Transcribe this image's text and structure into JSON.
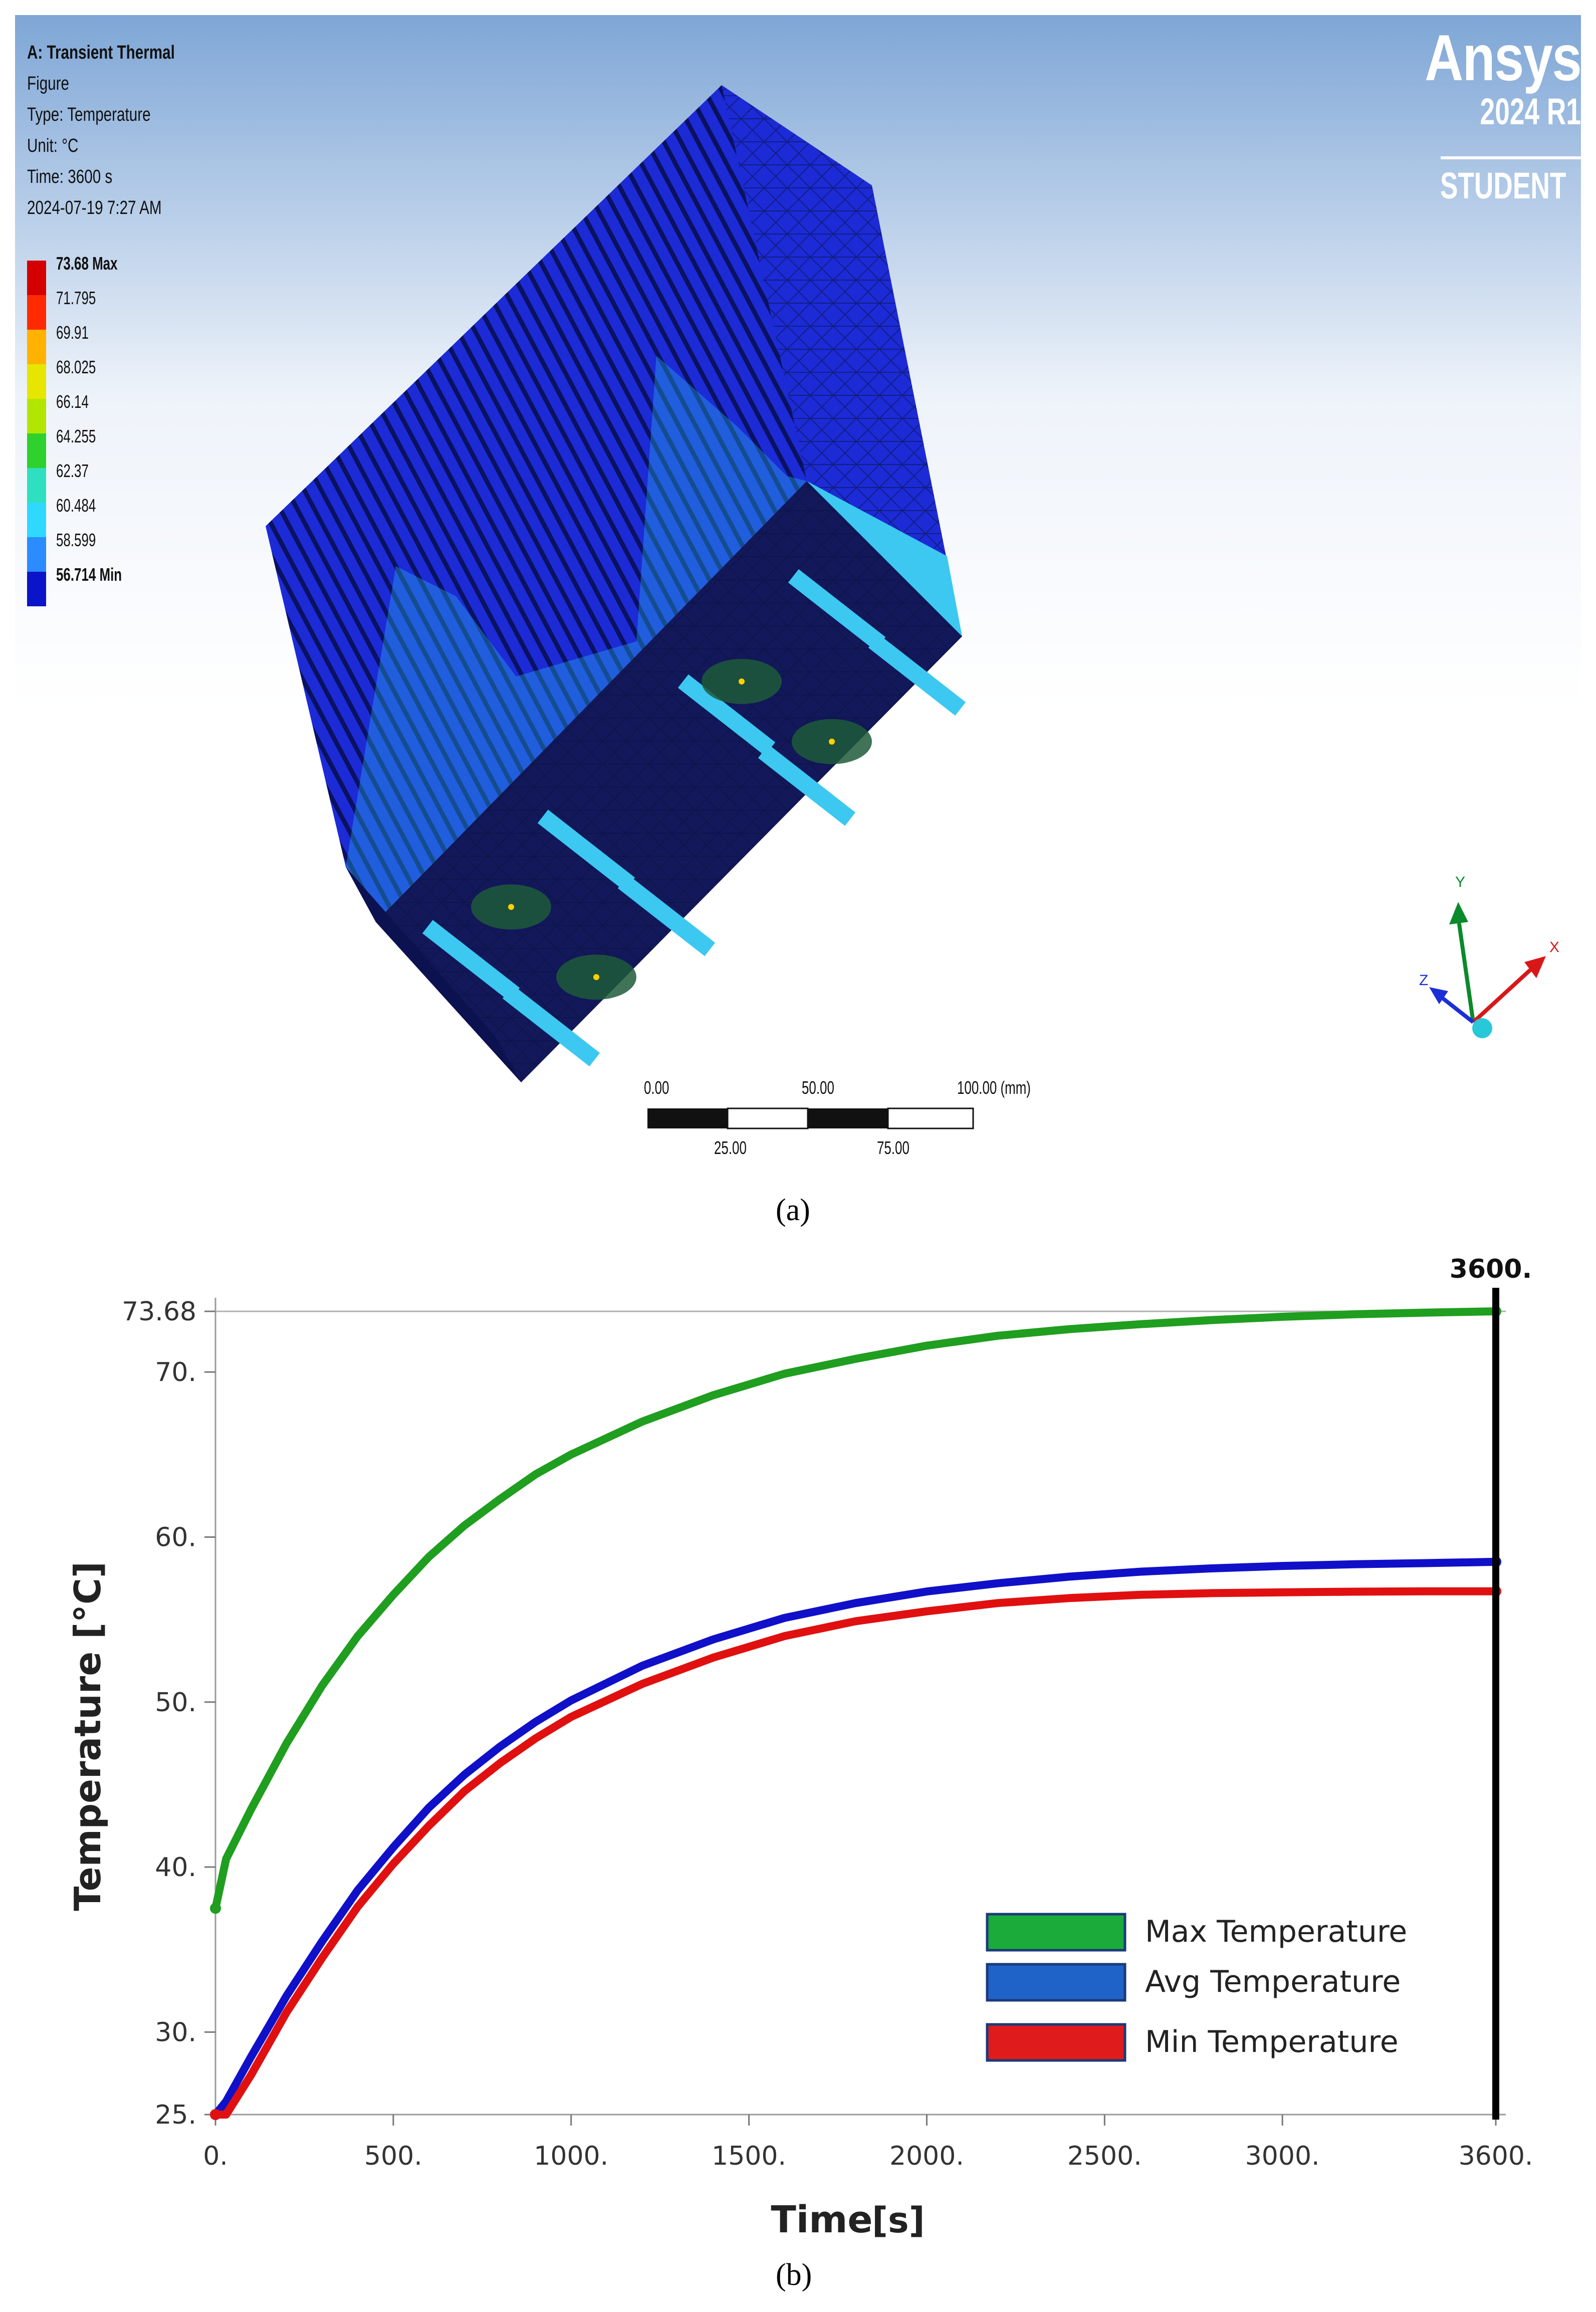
{
  "viewport": {
    "header": {
      "analysis": "A: Transient Thermal",
      "figure": "Figure",
      "type": "Type: Temperature",
      "unit": "Unit: °C",
      "time": "Time: 3600 s",
      "date": "2024-07-19 7:27 AM"
    },
    "legend": [
      {
        "label": "73.68 Max",
        "color": "#d40000",
        "bold": true
      },
      {
        "label": "71.795",
        "color": "#ff2a00",
        "bold": false
      },
      {
        "label": "69.91",
        "color": "#ffb300",
        "bold": false
      },
      {
        "label": "68.025",
        "color": "#e6e600",
        "bold": false
      },
      {
        "label": "66.14",
        "color": "#b2e600",
        "bold": false
      },
      {
        "label": "64.255",
        "color": "#2ed12e",
        "bold": false
      },
      {
        "label": "62.37",
        "color": "#2ee0c0",
        "bold": false
      },
      {
        "label": "60.484",
        "color": "#2ed8ff",
        "bold": false
      },
      {
        "label": "58.599",
        "color": "#2a8cff",
        "bold": false
      },
      {
        "label": "56.714 Min",
        "color": "#0a14c8",
        "bold": true
      }
    ],
    "logo": {
      "brand": "Ansys",
      "version": "2024 R1",
      "edition": "STUDENT"
    },
    "triad": {
      "x": "X",
      "y": "Y",
      "z": "Z"
    },
    "scalebar": {
      "top_labels": [
        "0.00",
        "50.00",
        "100.00 (mm)"
      ],
      "bottom_labels": [
        "25.00",
        "75.00"
      ]
    }
  },
  "captions": {
    "a": "(a)",
    "b": "(b)"
  },
  "chart_data": {
    "type": "line",
    "xlabel": "Time",
    "xunit": "[s]",
    "ylabel": "Temperature [°C]",
    "xlim": [
      0,
      3600
    ],
    "ylim": [
      25,
      74.5
    ],
    "x_ticks": [
      "0.",
      "500.",
      "1000.",
      "1500.",
      "2000.",
      "2500.",
      "3000.",
      "3600."
    ],
    "x_tick_values": [
      0,
      500,
      1000,
      1500,
      2000,
      2500,
      3000,
      3600
    ],
    "y_ticks": [
      "25.",
      "30.",
      "40.",
      "50.",
      "60.",
      "70.",
      "73.68"
    ],
    "y_tick_values": [
      25,
      30,
      40,
      50,
      60,
      70,
      73.68
    ],
    "cursor": {
      "x": 3600,
      "label": "3600."
    },
    "x": [
      0,
      30,
      100,
      200,
      300,
      400,
      500,
      600,
      700,
      800,
      900,
      1000,
      1200,
      1400,
      1600,
      1800,
      2000,
      2200,
      2400,
      2600,
      2800,
      3000,
      3200,
      3400,
      3600
    ],
    "series": [
      {
        "name": "Max Temperature",
        "color": "#1f9e1f",
        "values": [
          37.5,
          40.5,
          43.5,
          47.5,
          51.0,
          54.0,
          56.5,
          58.8,
          60.7,
          62.3,
          63.8,
          65.0,
          67.0,
          68.6,
          69.9,
          70.8,
          71.6,
          72.2,
          72.6,
          72.9,
          73.15,
          73.35,
          73.5,
          73.6,
          73.68
        ]
      },
      {
        "name": "Avg Temperature",
        "color": "#1010c8",
        "values": [
          25.0,
          25.8,
          28.5,
          32.2,
          35.5,
          38.6,
          41.2,
          43.6,
          45.6,
          47.3,
          48.8,
          50.1,
          52.2,
          53.8,
          55.1,
          56.0,
          56.7,
          57.2,
          57.6,
          57.9,
          58.1,
          58.25,
          58.35,
          58.42,
          58.5
        ]
      },
      {
        "name": "Min Temperature",
        "color": "#e01010",
        "values": [
          25.0,
          25.0,
          27.4,
          31.2,
          34.5,
          37.6,
          40.2,
          42.5,
          44.6,
          46.3,
          47.8,
          49.1,
          51.1,
          52.7,
          54.0,
          54.9,
          55.5,
          56.0,
          56.3,
          56.5,
          56.6,
          56.65,
          56.69,
          56.71,
          56.714
        ]
      }
    ],
    "legend": {
      "placement": "lower-right",
      "items": [
        {
          "label": "Max Temperature",
          "color": "#1aab3a"
        },
        {
          "label": "Avg Temperature",
          "color": "#1f63c8"
        },
        {
          "label": "Min Temperature",
          "color": "#e01b1b"
        }
      ]
    }
  }
}
